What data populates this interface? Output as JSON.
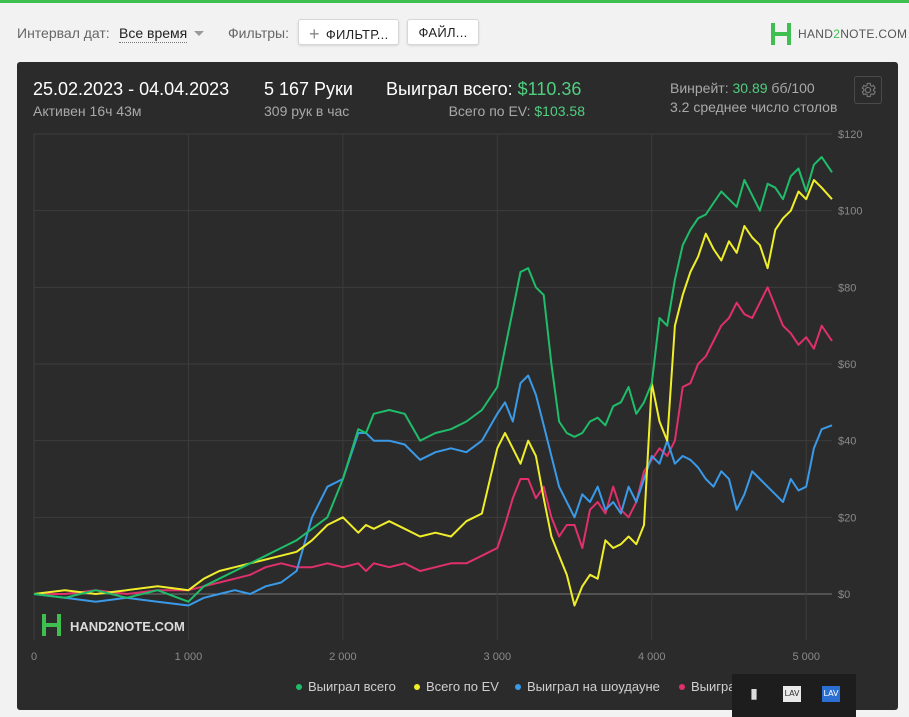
{
  "toolbar": {
    "date_interval_label": "Интервал дат:",
    "date_interval_value": "Все время",
    "filters_label": "Фильтры:",
    "filters_button": "ФИЛЬТР...",
    "files_button": "ФАЙЛ...",
    "brand": "HAND2NOTE.COM",
    "brand_parts": [
      "HAND",
      "2",
      "NOTE.COM"
    ]
  },
  "summary": {
    "date_range": "25.02.2023 - 04.04.2023",
    "active": "Активен 16ч 43м",
    "hands": "5 167 Руки",
    "hands_per_hour": "309 рук в час",
    "won_total_label": "Выиграл всего:",
    "won_total_value": "$110.36",
    "ev_total_label": "Всего по EV:",
    "ev_total_value": "$103.58",
    "winrate_label": "Винрейт:",
    "winrate_value": "30.89",
    "winrate_unit": "бб/100",
    "avg_tables": "3.2 среднее число столов"
  },
  "watermark": "HAND2NOTE.COM",
  "colors": {
    "accent": "#3fbf4f",
    "won_total": "#1fbd69",
    "ev_total": "#f0ee2a",
    "showdown": "#3a9ae8",
    "no_showdown": "#e0306c",
    "green_text": "#4fcf7f"
  },
  "chart_data": {
    "type": "line",
    "xlim": [
      0,
      5167
    ],
    "ylim": [
      -12,
      120
    ],
    "x_ticks": [
      0,
      1000,
      2000,
      3000,
      4000,
      5000
    ],
    "x_tick_labels": [
      "0",
      "1 000",
      "2 000",
      "3 000",
      "4 000",
      "5 000"
    ],
    "y_ticks": [
      0,
      20,
      40,
      60,
      80,
      100,
      120
    ],
    "y_tick_labels": [
      "$0",
      "$20",
      "$40",
      "$60",
      "$80",
      "$100",
      "$120"
    ],
    "legend_position": "bottom",
    "grid": true,
    "series": [
      {
        "name": "Выиграл всего",
        "color": "#1fbd69",
        "x": [
          0,
          200,
          400,
          600,
          800,
          1000,
          1100,
          1200,
          1300,
          1400,
          1500,
          1600,
          1700,
          1800,
          1900,
          2000,
          2100,
          2150,
          2200,
          2300,
          2400,
          2500,
          2600,
          2700,
          2800,
          2900,
          3000,
          3050,
          3100,
          3150,
          3200,
          3250,
          3300,
          3350,
          3400,
          3450,
          3500,
          3550,
          3600,
          3650,
          3700,
          3750,
          3800,
          3850,
          3900,
          3950,
          4000,
          4050,
          4100,
          4150,
          4200,
          4250,
          4300,
          4350,
          4400,
          4450,
          4500,
          4550,
          4600,
          4650,
          4700,
          4750,
          4800,
          4850,
          4900,
          4950,
          5000,
          5050,
          5100,
          5167
        ],
        "y": [
          0,
          -1,
          1,
          -1,
          1,
          -2,
          2,
          4,
          6,
          8,
          10,
          12,
          14,
          17,
          20,
          30,
          43,
          42,
          47,
          48,
          47,
          40,
          42,
          43,
          45,
          48,
          54,
          64,
          74,
          84,
          85,
          80,
          78,
          60,
          45,
          42,
          41,
          42,
          45,
          46,
          44,
          49,
          50,
          54,
          47,
          50,
          55,
          72,
          70,
          82,
          91,
          95,
          98,
          99,
          102,
          105,
          103,
          101,
          108,
          104,
          100,
          107,
          106,
          103,
          109,
          111,
          105,
          112,
          114,
          110
        ]
      },
      {
        "name": "Всего по EV",
        "color": "#f0ee2a",
        "x": [
          0,
          200,
          400,
          600,
          800,
          1000,
          1100,
          1200,
          1300,
          1400,
          1500,
          1600,
          1700,
          1800,
          1900,
          2000,
          2100,
          2150,
          2200,
          2300,
          2400,
          2500,
          2600,
          2700,
          2800,
          2900,
          3000,
          3050,
          3100,
          3150,
          3200,
          3250,
          3300,
          3350,
          3400,
          3450,
          3500,
          3550,
          3600,
          3650,
          3700,
          3750,
          3800,
          3850,
          3900,
          3950,
          4000,
          4050,
          4100,
          4150,
          4200,
          4250,
          4300,
          4350,
          4400,
          4450,
          4500,
          4550,
          4600,
          4650,
          4700,
          4750,
          4800,
          4850,
          4900,
          4950,
          5000,
          5050,
          5100,
          5167
        ],
        "y": [
          0,
          1,
          0,
          1,
          2,
          1,
          4,
          6,
          7,
          8,
          9,
          10,
          11,
          14,
          18,
          20,
          16,
          18,
          17,
          19,
          17,
          15,
          16,
          15,
          19,
          21,
          38,
          42,
          38,
          34,
          40,
          36,
          25,
          15,
          10,
          5,
          -3,
          2,
          5,
          4,
          14,
          12,
          13,
          15,
          13,
          18,
          55,
          45,
          40,
          70,
          78,
          84,
          88,
          94,
          90,
          87,
          92,
          89,
          96,
          93,
          91,
          85,
          95,
          98,
          100,
          105,
          103,
          108,
          106,
          103
        ]
      },
      {
        "name": "Выиграл на шоудауне",
        "color": "#3a9ae8",
        "x": [
          0,
          200,
          400,
          600,
          800,
          1000,
          1100,
          1200,
          1300,
          1400,
          1500,
          1600,
          1700,
          1800,
          1900,
          2000,
          2100,
          2150,
          2200,
          2300,
          2400,
          2500,
          2600,
          2700,
          2800,
          2900,
          3000,
          3050,
          3100,
          3150,
          3200,
          3250,
          3300,
          3350,
          3400,
          3450,
          3500,
          3550,
          3600,
          3650,
          3700,
          3750,
          3800,
          3850,
          3900,
          3950,
          4000,
          4050,
          4100,
          4150,
          4200,
          4250,
          4300,
          4350,
          4400,
          4450,
          4500,
          4550,
          4600,
          4650,
          4700,
          4750,
          4800,
          4850,
          4900,
          4950,
          5000,
          5050,
          5100,
          5167
        ],
        "y": [
          0,
          -1,
          -2,
          -1,
          -2,
          -3,
          -1,
          0,
          1,
          0,
          2,
          3,
          6,
          20,
          28,
          30,
          42,
          42,
          40,
          40,
          39,
          35,
          37,
          38,
          37,
          40,
          47,
          50,
          45,
          55,
          57,
          52,
          44,
          36,
          28,
          24,
          20,
          26,
          24,
          28,
          22,
          24,
          21,
          28,
          24,
          30,
          36,
          34,
          40,
          34,
          36,
          35,
          33,
          30,
          28,
          32,
          30,
          22,
          26,
          32,
          30,
          28,
          26,
          24,
          30,
          27,
          28,
          38,
          43,
          44
        ]
      },
      {
        "name": "Выиграл без шоудауна",
        "color": "#e0306c",
        "x": [
          0,
          200,
          400,
          600,
          800,
          1000,
          1100,
          1200,
          1300,
          1400,
          1500,
          1600,
          1700,
          1800,
          1900,
          2000,
          2100,
          2150,
          2200,
          2300,
          2400,
          2500,
          2600,
          2700,
          2800,
          2900,
          3000,
          3050,
          3100,
          3150,
          3200,
          3250,
          3300,
          3350,
          3400,
          3450,
          3500,
          3550,
          3600,
          3650,
          3700,
          3750,
          3800,
          3850,
          3900,
          3950,
          4000,
          4050,
          4100,
          4150,
          4200,
          4250,
          4300,
          4350,
          4400,
          4450,
          4500,
          4550,
          4600,
          4650,
          4700,
          4750,
          4800,
          4850,
          4900,
          4950,
          5000,
          5050,
          5100,
          5167
        ],
        "y": [
          0,
          0,
          1,
          0,
          1,
          1,
          2,
          3,
          4,
          5,
          7,
          8,
          7,
          7,
          8,
          7,
          8,
          6,
          8,
          7,
          8,
          6,
          7,
          8,
          8,
          10,
          12,
          18,
          25,
          30,
          30,
          25,
          28,
          20,
          15,
          18,
          18,
          12,
          22,
          24,
          21,
          28,
          22,
          20,
          24,
          32,
          35,
          38,
          36,
          40,
          54,
          55,
          60,
          62,
          66,
          70,
          72,
          76,
          73,
          72,
          76,
          80,
          75,
          70,
          68,
          65,
          67,
          64,
          70,
          66
        ]
      }
    ]
  }
}
